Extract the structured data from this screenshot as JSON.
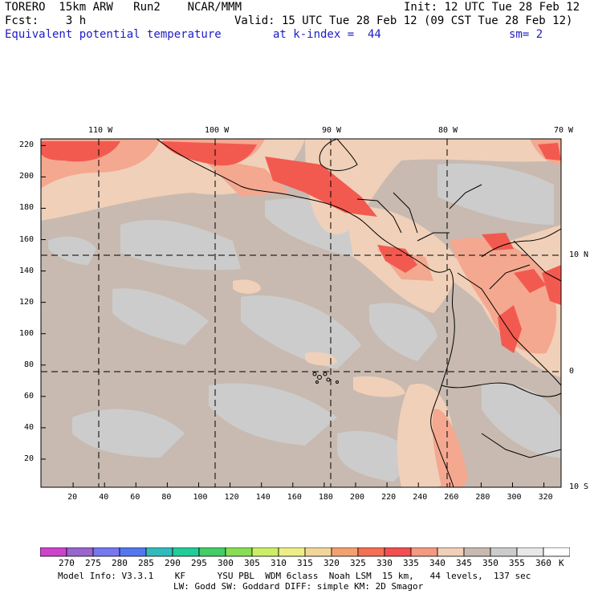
{
  "header": {
    "model": "TORERO  15km ARW   Run2    NCAR/MMM",
    "init": "Init: 12 UTC Tue 28 Feb 12",
    "fcst": "Fcst:    3 h",
    "valid": "Valid: 15 UTC Tue 28 Feb 12 (09 CST Tue 28 Feb 12)",
    "field": "Equivalent potential temperature",
    "level": "at k-index =  44",
    "smooth": "sm= 2"
  },
  "map": {
    "lon_labels": [
      "110 W",
      "100 W",
      "90 W",
      "80 W",
      "70 W"
    ],
    "lat_labels": [
      "10 N",
      "0",
      "10 S"
    ],
    "x_ticks": [
      "20",
      "40",
      "60",
      "80",
      "100",
      "120",
      "140",
      "160",
      "180",
      "200",
      "220",
      "240",
      "260",
      "280",
      "300",
      "320"
    ],
    "y_ticks": [
      "20",
      "40",
      "60",
      "80",
      "100",
      "120",
      "140",
      "160",
      "180",
      "200",
      "220"
    ],
    "background_color": "#c8bab0"
  },
  "colorbar": {
    "labels": [
      "270",
      "275",
      "280",
      "285",
      "290",
      "295",
      "300",
      "305",
      "310",
      "315",
      "320",
      "325",
      "330",
      "335",
      "340",
      "345",
      "350",
      "355",
      "360"
    ],
    "unit": "K",
    "colors": [
      "#cc44cc",
      "#9966cc",
      "#7777ee",
      "#5577ee",
      "#33bbbb",
      "#22cc99",
      "#44cc66",
      "#88dd55",
      "#ccee66",
      "#eeee88",
      "#f2d599",
      "#f2a070",
      "#f37055",
      "#f25050",
      "#f49a80",
      "#f0d0b8",
      "#c8bab0",
      "#cccccc",
      "#e8e8e8",
      "#ffffff"
    ]
  },
  "footer": {
    "line1": "Model Info: V3.3.1    KF      YSU PBL  WDM 6class  Noah LSM  15 km,   44 levels,  137 sec",
    "line2": "LW: Godd SW: Goddard DIFF: simple KM: 2D Smagor"
  }
}
